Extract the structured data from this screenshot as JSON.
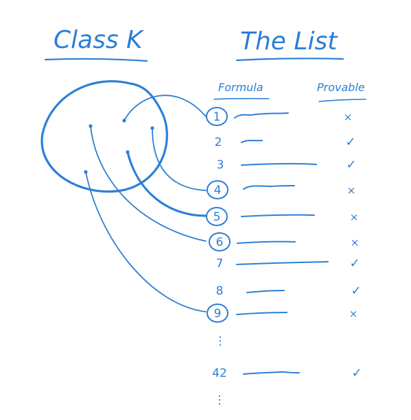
{
  "left": {
    "title": "Class K"
  },
  "right": {
    "title": "The List",
    "col_formula": "Formula",
    "col_provable": "Provable",
    "rows": [
      {
        "num": "1",
        "mark": "×",
        "circled": true
      },
      {
        "num": "2",
        "mark": "✓",
        "circled": false
      },
      {
        "num": "3",
        "mark": "✓",
        "circled": false
      },
      {
        "num": "4",
        "mark": "×",
        "circled": true
      },
      {
        "num": "5",
        "mark": "×",
        "circled": true
      },
      {
        "num": "6",
        "mark": "×",
        "circled": true
      },
      {
        "num": "7",
        "mark": "✓",
        "circled": false
      },
      {
        "num": "8",
        "mark": "✓",
        "circled": false
      },
      {
        "num": "9",
        "mark": "×",
        "circled": true
      },
      {
        "num": "⋮",
        "mark": "",
        "circled": false
      },
      {
        "num": "42",
        "mark": "✓",
        "circled": false
      },
      {
        "num": "⋮",
        "mark": "",
        "circled": false
      }
    ]
  },
  "colors": {
    "ink": "#2b7fd6",
    "background": "#ffffff"
  }
}
